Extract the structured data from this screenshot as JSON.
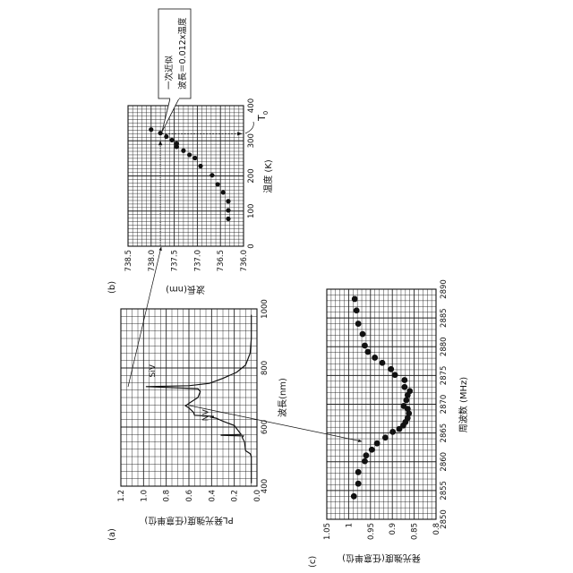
{
  "figure": {
    "panel_a_label": "(a)",
    "panel_b_label": "(b)",
    "panel_c_label": "(c)",
    "callout": {
      "line1": "一次近似",
      "line2": "波長＝0.012x温度"
    },
    "t0_label": "T",
    "t0_sub": "0"
  },
  "chart_data": [
    {
      "id": "a",
      "type": "line",
      "xlabel": "波長(nm)",
      "ylabel": "PL発光強度(任意単位)",
      "xlim": [
        400,
        1000
      ],
      "ylim": [
        0,
        1.2
      ],
      "xticks": [
        "400",
        "600",
        "800",
        "1000"
      ],
      "yticks": [
        "0.0",
        "0.2",
        "0.4",
        "0.6",
        "0.8",
        "1.0",
        "1.2"
      ],
      "grid": true,
      "annotations": [
        {
          "text": "NV",
          "x": 640,
          "y": 0.43
        },
        {
          "text": "SiV",
          "x": 790,
          "y": 0.9
        }
      ],
      "x": [
        410,
        500,
        510,
        520,
        550,
        565,
        570,
        572,
        575,
        590,
        605,
        620,
        630,
        633,
        636,
        640,
        650,
        665,
        672,
        685,
        700,
        720,
        730,
        737,
        740,
        748,
        765,
        785,
        810,
        850,
        900,
        980
      ],
      "y": [
        0.05,
        0.05,
        0.06,
        0.1,
        0.11,
        0.13,
        0.12,
        0.32,
        0.14,
        0.17,
        0.2,
        0.3,
        0.36,
        0.4,
        0.38,
        0.55,
        0.56,
        0.6,
        0.63,
        0.58,
        0.52,
        0.5,
        0.52,
        0.98,
        0.6,
        0.42,
        0.3,
        0.18,
        0.1,
        0.06,
        0.05,
        0.05
      ]
    },
    {
      "id": "b",
      "type": "scatter",
      "xlabel": "温度 (K)",
      "ylabel": "波長(nm)",
      "xlim": [
        0,
        400
      ],
      "ylim": [
        736.0,
        738.5
      ],
      "xticks": [
        "0",
        "100",
        "200",
        "300",
        "400"
      ],
      "yticks": [
        "736.0",
        "736.5",
        "737.0",
        "737.5",
        "738.0",
        "738.5"
      ],
      "grid": true,
      "x": [
        332,
        322,
        312,
        302,
        292,
        283,
        272,
        260,
        251,
        228,
        202,
        176,
        153,
        128,
        102,
        78
      ],
      "y": [
        738.0,
        737.8,
        737.67,
        737.55,
        737.45,
        737.45,
        737.3,
        737.17,
        737.05,
        736.93,
        736.68,
        736.56,
        736.44,
        736.33,
        736.33,
        736.33
      ],
      "reference": {
        "T0": 320,
        "wavelength": 737.8
      }
    },
    {
      "id": "c",
      "type": "scatter",
      "xlabel": "周波数 (MHz)",
      "ylabel": "発光強度(任意単位)",
      "xlim": [
        2850,
        2890
      ],
      "ylim": [
        0.8,
        1.05
      ],
      "xticks": [
        "2850",
        "2855",
        "2860",
        "2865",
        "2870",
        "2875",
        "2880",
        "2885",
        "2890"
      ],
      "yticks": [
        "0.8",
        "0.85",
        "0.9",
        "0.95",
        "1",
        "1.05"
      ],
      "grid": true,
      "x": [
        2854.0,
        2856.2,
        2858.2,
        2860.1,
        2861.1,
        2862.1,
        2863.2,
        2864.2,
        2865.2,
        2865.7,
        2866.3,
        2866.9,
        2867.6,
        2868.4,
        2869.2,
        2869.7,
        2870.7,
        2871.6,
        2872.3,
        2873.0,
        2874.2,
        2875.1,
        2876.1,
        2877.2,
        2878.1,
        2879.1,
        2880.2,
        2882.2,
        2884.0,
        2886.3,
        2888.3
      ],
      "y": [
        0.988,
        0.978,
        0.978,
        0.963,
        0.96,
        0.947,
        0.935,
        0.916,
        0.899,
        0.884,
        0.875,
        0.87,
        0.865,
        0.862,
        0.865,
        0.874,
        0.868,
        0.865,
        0.86,
        0.872,
        0.872,
        0.894,
        0.903,
        0.923,
        0.94,
        0.956,
        0.963,
        0.968,
        0.978,
        0.982,
        0.986
      ]
    }
  ]
}
